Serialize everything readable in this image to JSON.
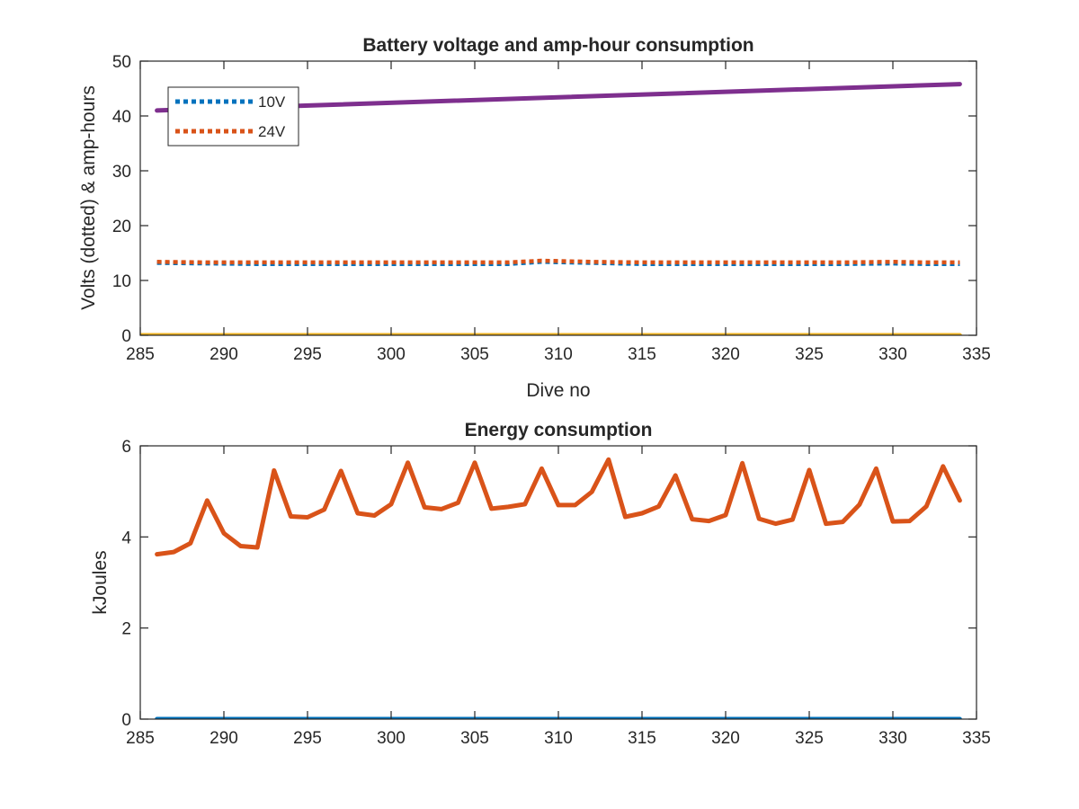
{
  "chart_data": [
    {
      "type": "line",
      "title": "Battery voltage and amp-hour consumption",
      "xlabel": "Dive no",
      "ylabel": "Volts (dotted) & amp-hours",
      "xlim": [
        285,
        335
      ],
      "ylim": [
        0,
        50
      ],
      "xticks": [
        "285",
        "290",
        "295",
        "300",
        "305",
        "310",
        "315",
        "320",
        "325",
        "330",
        "335"
      ],
      "yticks": [
        "0",
        "10",
        "20",
        "30",
        "40",
        "50"
      ],
      "legend": {
        "placement": "top-left"
      },
      "series": [
        {
          "name": "10V",
          "style": "dotted",
          "color": "#0072BD",
          "x": [
            286,
            289,
            292,
            295,
            298,
            301,
            304,
            307,
            309,
            312,
            315,
            318,
            321,
            324,
            327,
            330,
            332,
            334
          ],
          "y": [
            13.2,
            13.1,
            13.0,
            13.0,
            13.0,
            13.0,
            13.0,
            13.0,
            13.4,
            13.2,
            13.0,
            13.0,
            13.0,
            13.0,
            13.0,
            13.1,
            13.0,
            13.0
          ]
        },
        {
          "name": "24V",
          "style": "dotted",
          "color": "#D95319",
          "x": [
            286,
            289,
            292,
            295,
            298,
            301,
            304,
            307,
            309,
            312,
            315,
            318,
            321,
            324,
            327,
            330,
            332,
            334
          ],
          "y": [
            13.4,
            13.3,
            13.3,
            13.3,
            13.3,
            13.3,
            13.3,
            13.3,
            13.6,
            13.4,
            13.3,
            13.3,
            13.3,
            13.3,
            13.3,
            13.4,
            13.3,
            13.3
          ]
        },
        {
          "style": "solid",
          "color": "#7E2F8E",
          "x": [
            286,
            334
          ],
          "y": [
            41,
            45.8
          ]
        },
        {
          "style": "solid",
          "color": "#EDB120",
          "x": [
            285,
            334
          ],
          "y": [
            0,
            0
          ]
        }
      ]
    },
    {
      "type": "line",
      "title": "Energy consumption",
      "xlabel": "",
      "ylabel": "kJoules",
      "xlim": [
        285,
        335
      ],
      "ylim": [
        0,
        6
      ],
      "xticks": [
        "285",
        "290",
        "295",
        "300",
        "305",
        "310",
        "315",
        "320",
        "325",
        "330",
        "335"
      ],
      "yticks": [
        "0",
        "2",
        "4",
        "6"
      ],
      "series": [
        {
          "style": "solid",
          "color": "#D95319",
          "x": [
            286,
            287,
            288,
            289,
            290,
            291,
            292,
            293,
            294,
            295,
            296,
            297,
            298,
            299,
            300,
            301,
            302,
            303,
            304,
            305,
            306,
            307,
            308,
            309,
            310,
            311,
            312,
            313,
            314,
            315,
            316,
            317,
            318,
            319,
            320,
            321,
            322,
            323,
            324,
            325,
            326,
            327,
            328,
            329,
            330,
            331,
            332,
            333,
            334
          ],
          "y": [
            3.62,
            3.67,
            3.86,
            4.8,
            4.08,
            3.8,
            3.77,
            5.46,
            4.45,
            4.43,
            4.6,
            5.45,
            4.52,
            4.47,
            4.72,
            5.63,
            4.65,
            4.61,
            4.75,
            5.63,
            4.62,
            4.66,
            4.72,
            5.5,
            4.7,
            4.7,
            4.99,
            5.7,
            4.44,
            4.52,
            4.67,
            5.35,
            4.39,
            4.35,
            4.48,
            5.62,
            4.4,
            4.29,
            4.38,
            5.47,
            4.29,
            4.33,
            4.71,
            5.5,
            4.34,
            4.35,
            4.67,
            5.55,
            4.8
          ]
        },
        {
          "style": "solid",
          "color": "#0072BD",
          "x": [
            286,
            334
          ],
          "y": [
            0,
            0
          ]
        }
      ]
    }
  ]
}
